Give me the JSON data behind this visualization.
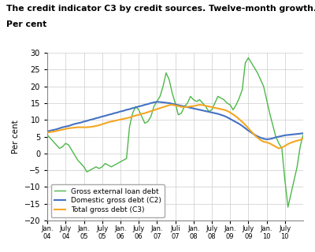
{
  "title": "The credit indicator C3 by credit sources. Twelve-month growth.\nPer cent",
  "ylabel": "Per cent",
  "ylim": [
    -20,
    30
  ],
  "yticks": [
    -20,
    -15,
    -10,
    -5,
    0,
    5,
    10,
    15,
    20,
    25,
    30
  ],
  "xtick_positions": [
    0,
    6,
    12,
    18,
    24,
    30,
    36,
    42,
    48,
    54,
    60,
    66,
    72,
    78
  ],
  "xtick_labels": [
    "Jan.\n04",
    "July\n04",
    "Jan.\n05",
    "July\n05",
    "Jan.\n06",
    "July\n06",
    "Jan.\n07",
    "Juli\n07",
    "Jan.\n08",
    "July\n08",
    "Jan.\n09",
    "July\n09",
    "Jan.\n10",
    "July\n10"
  ],
  "line_colors": {
    "external": "#4db848",
    "domestic": "#4472c4",
    "total": "#f5a623"
  },
  "legend_labels": [
    "Gross external loan debt",
    "Domestic gross debt (C2)",
    "Total gross debt (C3)"
  ],
  "external": [
    5.5,
    4.5,
    3.5,
    2.5,
    1.5,
    2.0,
    3.0,
    2.5,
    1.0,
    -0.5,
    -2.0,
    -3.0,
    -4.0,
    -5.5,
    -5.0,
    -4.5,
    -4.0,
    -4.5,
    -4.0,
    -3.0,
    -3.5,
    -4.0,
    -3.5,
    -3.0,
    -2.5,
    -2.0,
    -1.5,
    8.0,
    12.0,
    14.0,
    13.0,
    11.0,
    9.0,
    9.5,
    11.0,
    14.0,
    15.5,
    17.0,
    20.0,
    24.0,
    22.0,
    18.0,
    15.0,
    11.5,
    12.0,
    14.0,
    15.0,
    17.0,
    16.0,
    15.5,
    16.0,
    15.0,
    14.0,
    12.5,
    13.0,
    15.0,
    17.0,
    16.5,
    16.0,
    15.0,
    14.5,
    13.0,
    14.5,
    16.5,
    19.0,
    27.0,
    28.5,
    27.0,
    25.5,
    24.0,
    22.0,
    20.0,
    16.0,
    12.0,
    8.5,
    5.0,
    3.0,
    1.5,
    -8.0,
    -16.0,
    -12.0,
    -8.0,
    -4.0,
    2.0,
    5.5
  ],
  "domestic": [
    6.5,
    6.8,
    7.0,
    7.2,
    7.5,
    7.8,
    8.0,
    8.2,
    8.5,
    8.8,
    9.0,
    9.2,
    9.5,
    9.7,
    10.0,
    10.2,
    10.5,
    10.7,
    11.0,
    11.2,
    11.5,
    11.7,
    12.0,
    12.2,
    12.5,
    12.7,
    13.0,
    13.2,
    13.5,
    13.7,
    14.0,
    14.2,
    14.5,
    14.7,
    15.0,
    15.2,
    15.4,
    15.3,
    15.2,
    15.1,
    15.0,
    14.8,
    14.6,
    14.4,
    14.2,
    14.0,
    13.8,
    13.6,
    13.4,
    13.2,
    13.0,
    12.8,
    12.6,
    12.4,
    12.2,
    12.0,
    11.8,
    11.5,
    11.2,
    10.8,
    10.3,
    9.8,
    9.3,
    8.8,
    8.2,
    7.5,
    6.8,
    6.2,
    5.6,
    5.1,
    4.7,
    4.4,
    4.2,
    4.3,
    4.5,
    4.8,
    5.0,
    5.2,
    5.4,
    5.5,
    5.6,
    5.7,
    5.8,
    5.9,
    6.0
  ],
  "total": [
    6.2,
    6.4,
    6.5,
    6.7,
    6.9,
    7.1,
    7.3,
    7.5,
    7.6,
    7.7,
    7.8,
    7.8,
    7.8,
    7.8,
    7.9,
    8.0,
    8.2,
    8.4,
    8.7,
    9.0,
    9.3,
    9.5,
    9.7,
    9.9,
    10.1,
    10.3,
    10.5,
    10.7,
    11.0,
    11.3,
    11.5,
    11.8,
    12.0,
    12.3,
    12.6,
    12.9,
    13.2,
    13.5,
    13.8,
    14.1,
    14.4,
    14.5,
    14.3,
    14.1,
    13.9,
    13.8,
    13.9,
    14.0,
    14.1,
    14.3,
    14.5,
    14.4,
    14.2,
    14.0,
    13.8,
    13.6,
    13.4,
    13.2,
    13.0,
    12.7,
    12.2,
    11.6,
    11.0,
    10.2,
    9.4,
    8.5,
    7.5,
    6.5,
    5.5,
    4.7,
    4.0,
    3.5,
    3.3,
    3.0,
    2.5,
    2.0,
    1.5,
    1.8,
    2.2,
    2.8,
    3.2,
    3.5,
    3.8,
    4.0,
    4.5
  ],
  "background_color": "#ffffff",
  "grid_color": "#cccccc"
}
